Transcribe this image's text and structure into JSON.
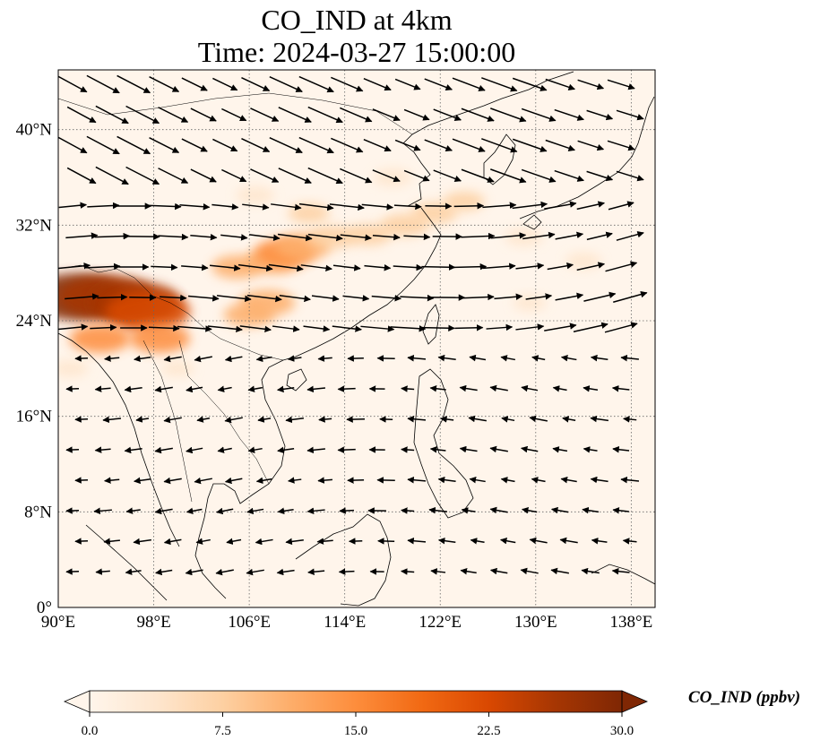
{
  "title": {
    "line1": "CO_IND at 4km",
    "line2": "Time: 2024-03-27 15:00:00"
  },
  "map": {
    "extent": {
      "lon": [
        90,
        140
      ],
      "lat": [
        0,
        45
      ]
    },
    "lon_ticks": [
      {
        "value": 90,
        "label": "90°E"
      },
      {
        "value": 98,
        "label": "98°E"
      },
      {
        "value": 106,
        "label": "106°E"
      },
      {
        "value": 114,
        "label": "114°E"
      },
      {
        "value": 122,
        "label": "122°E"
      },
      {
        "value": 130,
        "label": "130°E"
      },
      {
        "value": 138,
        "label": "138°E"
      }
    ],
    "lat_ticks": [
      {
        "value": 0,
        "label": "0°"
      },
      {
        "value": 8,
        "label": "8°N"
      },
      {
        "value": 16,
        "label": "16°N"
      },
      {
        "value": 24,
        "label": "24°N"
      },
      {
        "value": 32,
        "label": "32°N"
      },
      {
        "value": 40,
        "label": "40°N"
      }
    ],
    "gridlines": true,
    "plumes": [
      {
        "lon": 91.5,
        "lat": 26.0,
        "value": 30
      },
      {
        "lon": 94.0,
        "lat": 26.0,
        "value": 28
      },
      {
        "lon": 96.5,
        "lat": 25.5,
        "value": 26
      },
      {
        "lon": 97.5,
        "lat": 24.8,
        "value": 24
      },
      {
        "lon": 93.5,
        "lat": 22.5,
        "value": 14
      },
      {
        "lon": 98.5,
        "lat": 22.5,
        "value": 14
      },
      {
        "lon": 105.0,
        "lat": 28.5,
        "value": 10
      },
      {
        "lon": 108.0,
        "lat": 29.0,
        "value": 12
      },
      {
        "lon": 109.0,
        "lat": 29.7,
        "value": 14
      },
      {
        "lon": 110.5,
        "lat": 30.2,
        "value": 12
      },
      {
        "lon": 113.0,
        "lat": 31.0,
        "value": 9
      },
      {
        "lon": 116.0,
        "lat": 31.2,
        "value": 8
      },
      {
        "lon": 119.0,
        "lat": 32.0,
        "value": 9
      },
      {
        "lon": 121.5,
        "lat": 33.0,
        "value": 8
      },
      {
        "lon": 124.0,
        "lat": 34.0,
        "value": 6
      },
      {
        "lon": 107.5,
        "lat": 25.5,
        "value": 12
      },
      {
        "lon": 106.0,
        "lat": 24.5,
        "value": 10
      },
      {
        "lon": 111.0,
        "lat": 33.0,
        "value": 6
      },
      {
        "lon": 106.5,
        "lat": 34.5,
        "value": 5
      },
      {
        "lon": 118.0,
        "lat": 36.0,
        "value": 5
      },
      {
        "lon": 129.0,
        "lat": 31.0,
        "value": 5
      },
      {
        "lon": 134.0,
        "lat": 29.0,
        "value": 4
      },
      {
        "lon": 129.5,
        "lat": 25.5,
        "value": 3
      },
      {
        "lon": 91.0,
        "lat": 20.0,
        "value": 4
      },
      {
        "lon": 100.0,
        "lat": 20.0,
        "value": 3
      }
    ]
  },
  "colorbar": {
    "label": "CO_IND (ppbv)",
    "min": 0,
    "max": 30,
    "extend": "both",
    "ticks": [
      "0.0",
      "7.5",
      "15.0",
      "22.5",
      "30.0"
    ],
    "colormap": [
      "#fff5eb",
      "#fee6ce",
      "#fdd0a2",
      "#fdae6b",
      "#fd8d3c",
      "#f16913",
      "#d94801",
      "#a63603",
      "#7f2704"
    ]
  }
}
